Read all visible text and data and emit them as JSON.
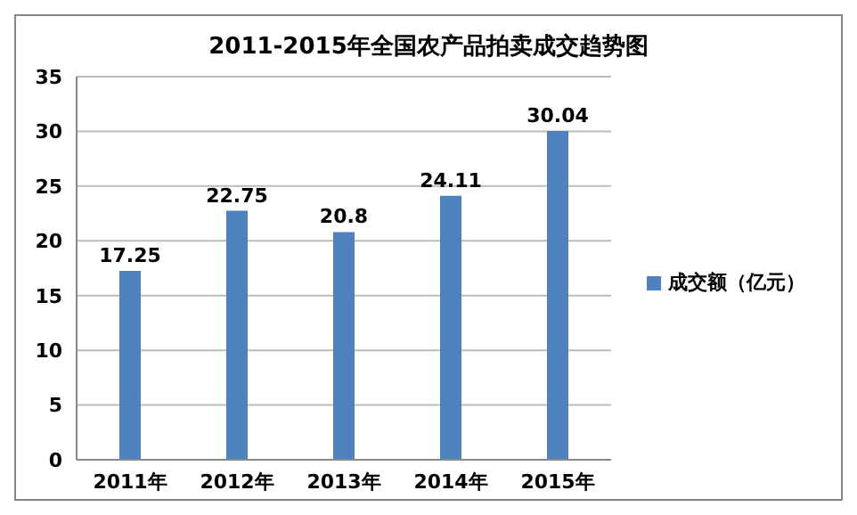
{
  "chart_data": {
    "type": "bar",
    "title": "2011-2015年全国农产品拍卖成交趋势图",
    "categories": [
      "2011年",
      "2012年",
      "2013年",
      "2014年",
      "2015年"
    ],
    "series": [
      {
        "name": "成交额（亿元）",
        "color": "#4f81bd",
        "values": [
          17.25,
          22.75,
          20.8,
          24.11,
          30.04
        ]
      }
    ],
    "ylim": [
      0,
      35
    ],
    "yticks": [
      0,
      5,
      10,
      15,
      20,
      25,
      30,
      35
    ],
    "grid": "y",
    "legend": "right",
    "data_labels": true
  }
}
